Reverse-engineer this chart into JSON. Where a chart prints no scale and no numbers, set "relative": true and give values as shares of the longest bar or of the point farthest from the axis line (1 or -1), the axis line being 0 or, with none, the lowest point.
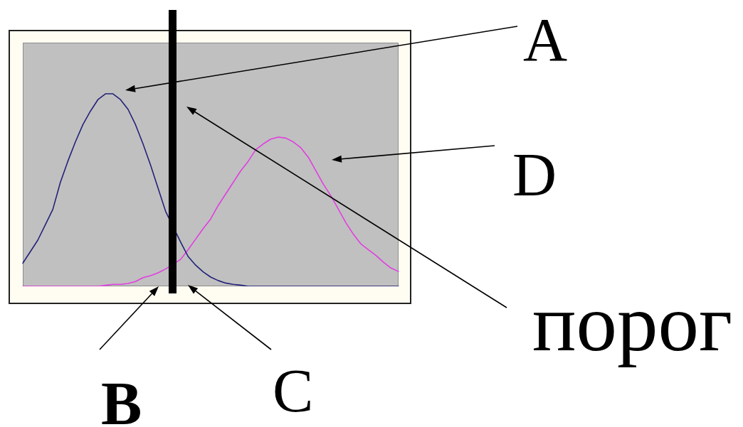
{
  "chart_data": {
    "type": "line",
    "relative": true,
    "categories": [
      null,
      null,
      null,
      null,
      null,
      null,
      null,
      null,
      null,
      null,
      null,
      null,
      null,
      null,
      null,
      null,
      null,
      null,
      null,
      null,
      null,
      null,
      null,
      null,
      null,
      null,
      null,
      null,
      null,
      null,
      null,
      null,
      null,
      null,
      null,
      null,
      null,
      null,
      null,
      null,
      null,
      null,
      null,
      null,
      null,
      null,
      null,
      null,
      null,
      null,
      null
    ],
    "series": [
      {
        "color": "#22227a",
        "values": [
          0.12,
          0.18,
          0.24,
          0.32,
          0.4,
          0.54,
          0.65,
          0.75,
          0.84,
          0.91,
          0.97,
          1,
          1,
          0.97,
          0.92,
          0.84,
          0.74,
          0.63,
          0.51,
          0.39,
          null,
          0.23,
          0.155,
          0.11,
          0.075,
          0.048,
          0.03,
          0.017,
          0.01,
          0.006,
          0,
          0,
          0,
          0,
          0,
          0,
          0,
          0,
          0,
          0,
          0,
          0,
          0,
          0,
          0,
          0,
          0,
          0,
          0,
          0,
          0
        ]
      },
      {
        "color": "#e23ee2",
        "values": [
          0,
          0,
          0,
          0,
          0,
          0,
          0,
          0,
          0,
          0,
          0,
          0.005,
          0.01,
          0.01,
          0.015,
          0.025,
          0.045,
          0.055,
          0.07,
          0.09,
          null,
          0.14,
          0.19,
          0.245,
          0.3,
          0.35,
          0.42,
          0.48,
          0.54,
          0.6,
          0.65,
          0.71,
          0.74,
          0.765,
          0.775,
          0.77,
          0.75,
          0.72,
          0.67,
          0.6,
          0.53,
          0.47,
          0.4,
          0.33,
          0.27,
          0.22,
          0.19,
          0.16,
          0.125,
          0.095,
          0.077
        ]
      }
    ],
    "annotations": [
      "A",
      "B",
      "C",
      "D",
      "порог"
    ]
  }
}
